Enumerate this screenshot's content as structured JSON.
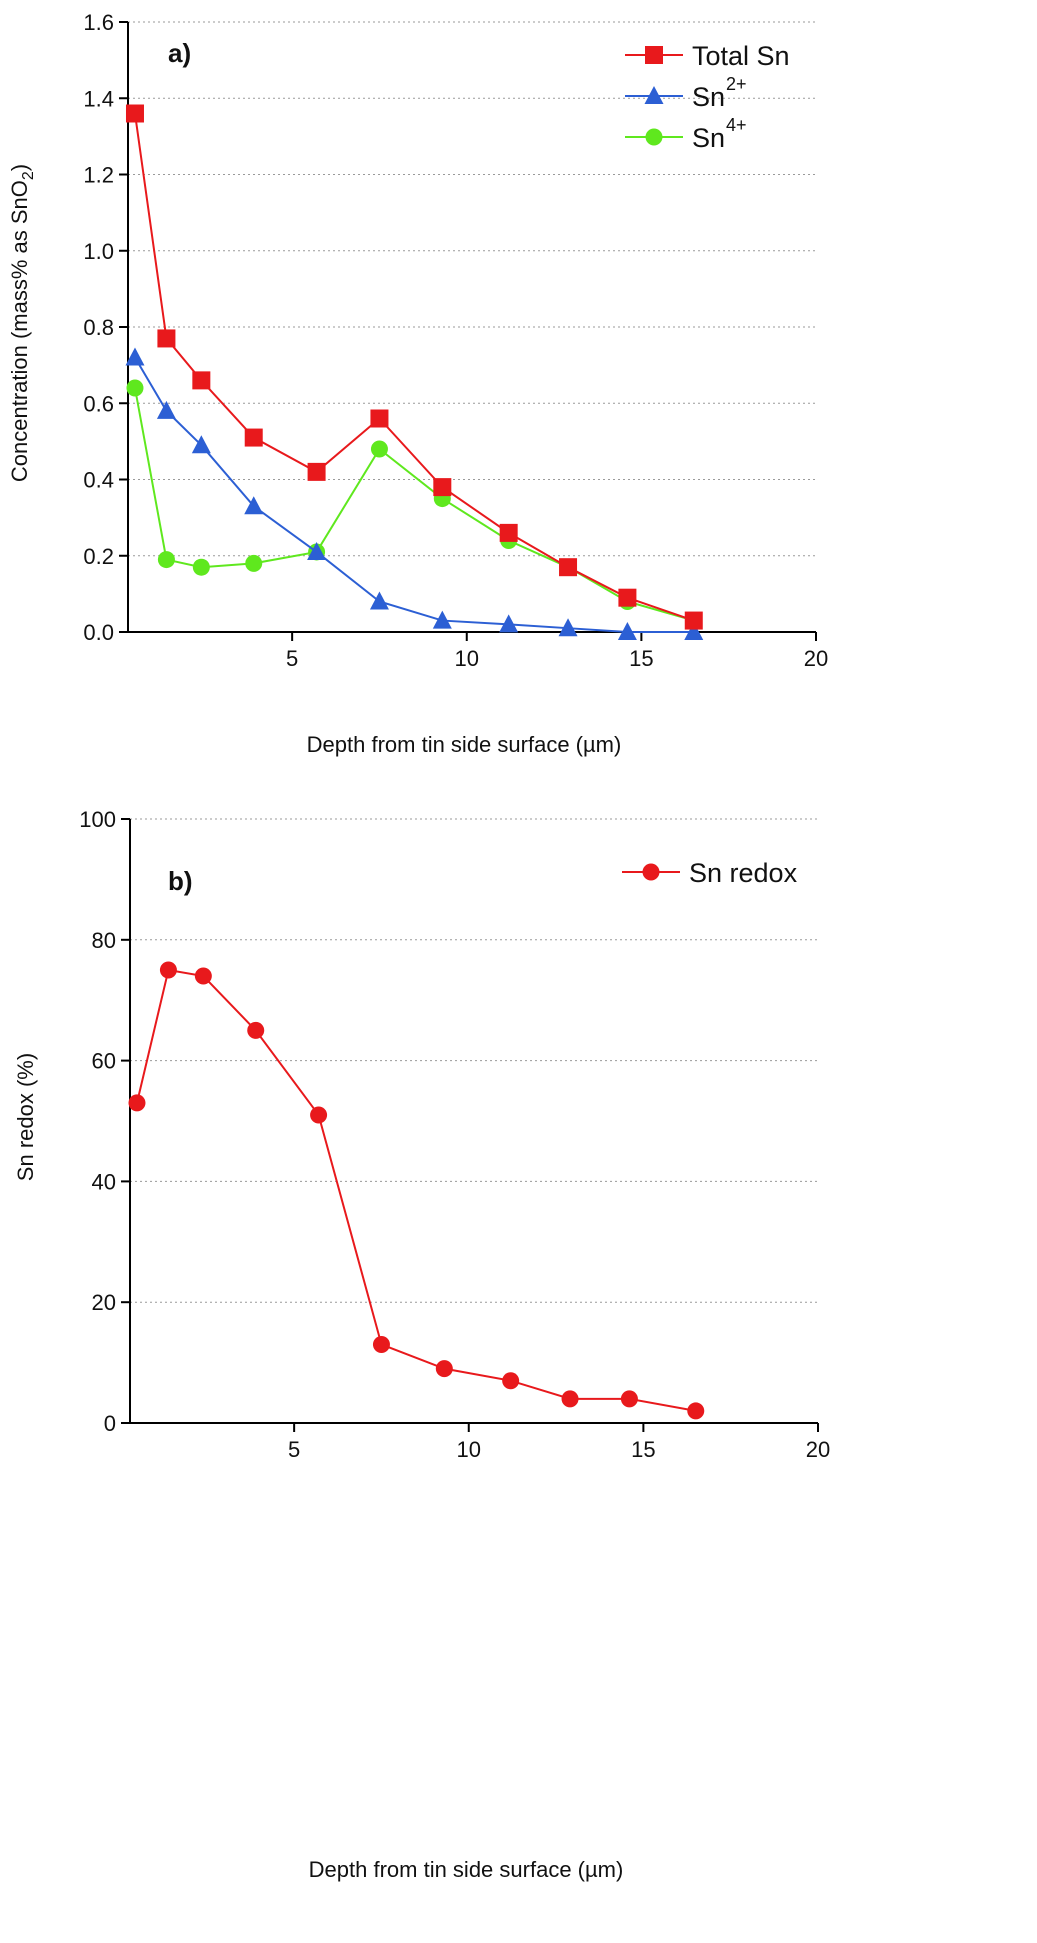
{
  "chart_data": [
    {
      "type": "line",
      "panel_label": "a)",
      "xlabel": "Depth from tin side surface (µm)",
      "ylabel": "Concentration (mass% as SnO",
      "ylabel_sub": "2",
      "ylabel_end": ")",
      "xlim": [
        0.3,
        20
      ],
      "ylim": [
        0,
        1.6
      ],
      "xticks": [
        5,
        10,
        15,
        20
      ],
      "yticks": [
        "0.0",
        "0.2",
        "0.4",
        "0.6",
        "0.8",
        "1.0",
        "1.2",
        "1.4",
        "1.6"
      ],
      "grid": "horizontal dotted",
      "legend_placement": "top-right",
      "x": [
        0.5,
        1.4,
        2.4,
        3.9,
        5.7,
        7.5,
        9.3,
        11.2,
        12.9,
        14.6,
        16.5
      ],
      "series": [
        {
          "name": "Total Sn",
          "sup": "",
          "marker": "square",
          "color": "#e8191c",
          "values": [
            1.36,
            0.77,
            0.66,
            0.51,
            0.42,
            0.56,
            0.38,
            0.26,
            0.17,
            0.09,
            0.03
          ]
        },
        {
          "name": "Sn",
          "sup": "2+",
          "marker": "triangle",
          "color": "#2c5fd4",
          "values": [
            0.72,
            0.58,
            0.49,
            0.33,
            0.21,
            0.08,
            0.03,
            0.02,
            0.01,
            0.0,
            0.0
          ]
        },
        {
          "name": "Sn",
          "sup": "4+",
          "marker": "circle",
          "color": "#5fe81e",
          "values": [
            0.64,
            0.19,
            0.17,
            0.18,
            0.21,
            0.48,
            0.35,
            0.24,
            0.17,
            0.08,
            0.03
          ]
        }
      ]
    },
    {
      "type": "line",
      "panel_label": "b)",
      "xlabel": "Depth from tin side surface (µm)",
      "ylabel": "Sn redox (%)",
      "xlim": [
        0.3,
        20
      ],
      "ylim": [
        0,
        100
      ],
      "xticks": [
        5,
        10,
        15,
        20
      ],
      "yticks": [
        "0",
        "20",
        "40",
        "60",
        "80",
        "100"
      ],
      "grid": "horizontal dotted",
      "legend_placement": "top-right",
      "x": [
        0.5,
        1.4,
        2.4,
        3.9,
        5.7,
        7.5,
        9.3,
        11.2,
        12.9,
        14.6,
        16.5
      ],
      "series": [
        {
          "name": "Sn redox",
          "sup": "",
          "marker": "circle",
          "color": "#e8191c",
          "values": [
            53,
            75,
            74,
            65,
            51,
            13,
            9,
            7,
            4,
            4,
            2
          ]
        }
      ]
    }
  ]
}
